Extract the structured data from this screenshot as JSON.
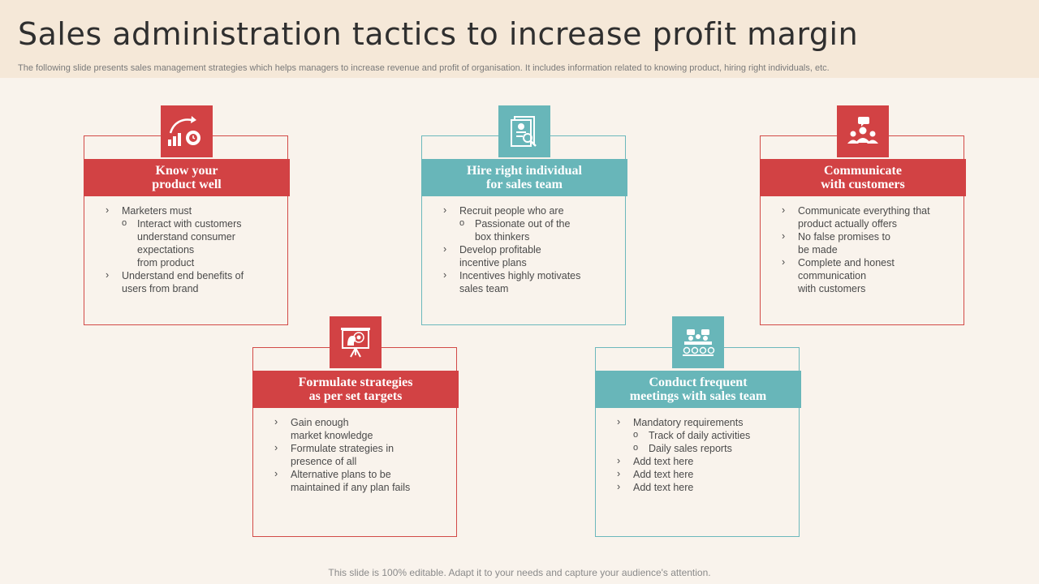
{
  "title": "Sales administration tactics to increase profit margin",
  "subtitle": "The following slide presents sales management strategies which helps managers to increase revenue and profit of organisation. It includes information related to knowing product, hiring right individuals, etc.",
  "colors": {
    "red": "#d24244",
    "teal": "#68b6b9",
    "background": "#f9f3ec",
    "header_band": "#f5e8d8"
  },
  "cards": [
    {
      "icon": "growth-gear-icon",
      "heading_line1": "Know your",
      "heading_line2": "product well",
      "items": [
        "Marketers must",
        "Interact with customers",
        "understand consumer",
        "expectations",
        "from product",
        "Understand end benefits of",
        "users from brand"
      ]
    },
    {
      "icon": "resume-search-icon",
      "heading_line1": "Hire right individual",
      "heading_line2": "for sales team",
      "items": [
        "Recruit people who are",
        "Passionate out of the",
        "box thinkers",
        "Develop profitable",
        "incentive plans",
        "Incentives highly motivates",
        "sales team"
      ]
    },
    {
      "icon": "group-chat-icon",
      "heading_line1": "Communicate",
      "heading_line2": "with customers",
      "items": [
        "Communicate everything that",
        "product actually offers",
        "No false promises to",
        "be made",
        "Complete and honest",
        "communication",
        "with customers"
      ]
    },
    {
      "icon": "target-presentation-icon",
      "heading_line1": "Formulate strategies",
      "heading_line2": "as per set targets",
      "items": [
        "Gain enough",
        "market knowledge",
        "Formulate strategies in",
        "presence of all",
        "Alternative plans to be",
        "maintained if any plan fails"
      ]
    },
    {
      "icon": "team-meeting-icon",
      "heading_line1": "Conduct frequent",
      "heading_line2": "meetings with sales team",
      "items": [
        "Mandatory requirements",
        "Track of daily activities",
        "Daily sales reports",
        "Add text here",
        "Add text here",
        "Add text here"
      ]
    }
  ],
  "footer": "This slide is 100% editable. Adapt it to your needs and capture your audience's attention."
}
